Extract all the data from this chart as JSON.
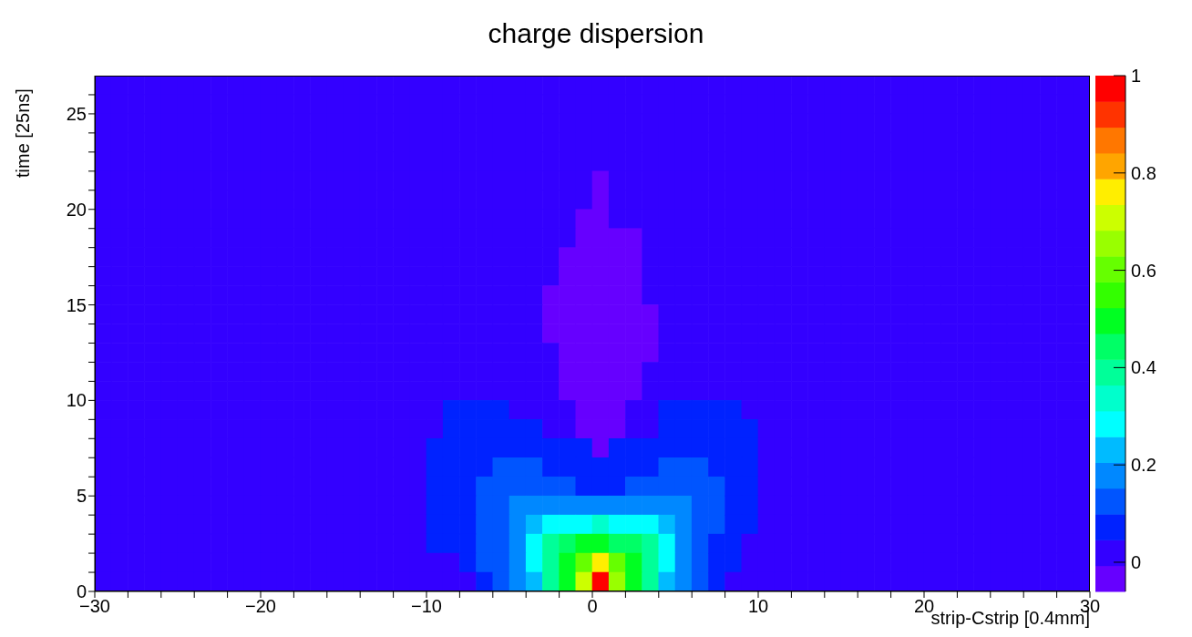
{
  "chart_data": {
    "type": "heatmap",
    "title": "charge dispersion",
    "xlabel": "strip-Cstrip [0.4mm]",
    "ylabel": "time [25ns]",
    "xlim": [
      -30,
      30
    ],
    "ylim": [
      0,
      27
    ],
    "xticks": [
      {
        "value": -30,
        "label": "−30"
      },
      {
        "value": -28,
        "label": null
      },
      {
        "value": -26,
        "label": null
      },
      {
        "value": -24,
        "label": null
      },
      {
        "value": -22,
        "label": null
      },
      {
        "value": -20,
        "label": "−20"
      },
      {
        "value": -18,
        "label": null
      },
      {
        "value": -16,
        "label": null
      },
      {
        "value": -14,
        "label": null
      },
      {
        "value": -12,
        "label": null
      },
      {
        "value": -10,
        "label": "−10"
      },
      {
        "value": -8,
        "label": null
      },
      {
        "value": -6,
        "label": null
      },
      {
        "value": -4,
        "label": null
      },
      {
        "value": -2,
        "label": null
      },
      0,
      {
        "value": 2,
        "label": null
      },
      {
        "value": 4,
        "label": null
      },
      {
        "value": 6,
        "label": null
      },
      {
        "value": 8,
        "label": null
      },
      10,
      {
        "value": 12,
        "label": null
      },
      {
        "value": 14,
        "label": null
      },
      {
        "value": 16,
        "label": null
      },
      {
        "value": 18,
        "label": null
      },
      20,
      {
        "value": 22,
        "label": null
      },
      {
        "value": 24,
        "label": null
      },
      {
        "value": 26,
        "label": null
      },
      {
        "value": 28,
        "label": null
      },
      30
    ],
    "yticks": [
      0,
      {
        "value": 1,
        "label": null
      },
      {
        "value": 2,
        "label": null
      },
      {
        "value": 3,
        "label": null
      },
      {
        "value": 4,
        "label": null
      },
      5,
      {
        "value": 6,
        "label": null
      },
      {
        "value": 7,
        "label": null
      },
      {
        "value": 8,
        "label": null
      },
      {
        "value": 9,
        "label": null
      },
      10,
      {
        "value": 11,
        "label": null
      },
      {
        "value": 12,
        "label": null
      },
      {
        "value": 13,
        "label": null
      },
      {
        "value": 14,
        "label": null
      },
      15,
      {
        "value": 16,
        "label": null
      },
      {
        "value": 17,
        "label": null
      },
      {
        "value": 18,
        "label": null
      },
      {
        "value": 19,
        "label": null
      },
      20,
      {
        "value": 21,
        "label": null
      },
      {
        "value": 22,
        "label": null
      },
      {
        "value": 23,
        "label": null
      },
      {
        "value": 24,
        "label": null
      },
      25,
      {
        "value": 26,
        "label": null
      }
    ],
    "clim": [
      -0.06,
      1
    ],
    "cticks": [
      0,
      0.2,
      0.4,
      0.6,
      0.8,
      1
    ],
    "cells": [
      [
        0,
        0,
        0,
        0,
        0,
        0,
        0,
        0,
        0,
        0,
        0,
        0,
        0,
        0,
        0,
        0,
        0,
        0,
        0,
        0,
        0,
        0,
        0,
        0,
        0,
        0,
        0,
        0,
        0,
        0,
        0,
        0,
        0,
        0,
        0,
        0,
        0,
        0,
        0,
        0,
        0,
        0,
        0,
        0,
        0,
        0,
        0,
        0,
        0,
        0,
        0,
        0,
        0,
        0,
        0,
        0,
        0,
        0,
        0,
        0
      ],
      [
        0,
        0,
        0,
        0,
        0,
        0,
        0,
        0,
        0,
        0,
        0,
        0,
        0,
        0,
        0,
        0,
        0,
        0,
        0,
        0,
        0,
        0,
        0,
        0,
        0,
        0,
        0,
        0,
        0,
        0,
        0,
        0,
        0,
        0,
        0,
        0,
        0,
        0,
        0,
        0,
        0,
        0,
        0,
        0,
        0,
        0,
        0,
        0,
        0,
        0,
        0,
        0,
        0,
        0,
        0,
        0,
        0,
        0,
        0,
        0
      ],
      [
        0,
        0,
        0,
        0,
        0,
        0,
        0,
        0,
        0,
        0,
        0,
        0,
        0,
        0,
        0,
        0,
        0,
        0,
        0,
        0,
        0,
        0,
        0,
        0,
        0,
        0,
        0,
        0,
        0,
        0,
        0,
        0,
        0,
        0,
        0,
        0,
        0,
        0,
        0,
        0,
        0,
        0,
        0,
        0,
        0,
        0,
        0,
        0,
        0,
        0,
        0,
        0,
        0,
        0,
        0,
        0,
        0,
        0,
        0,
        0
      ],
      [
        0,
        0,
        0,
        0,
        0,
        0,
        0,
        0,
        0,
        0,
        0,
        0,
        0,
        0,
        0,
        0,
        0,
        0,
        0,
        0,
        0,
        0,
        0,
        0,
        0,
        0,
        0,
        0,
        0,
        0,
        0,
        0,
        0,
        0,
        0,
        0,
        0,
        0,
        0,
        0,
        0,
        0,
        0,
        0,
        0,
        0,
        0,
        0,
        0,
        0,
        0,
        0,
        0,
        0,
        0,
        0,
        0,
        0,
        0,
        0
      ],
      [
        0,
        0,
        0,
        0,
        0,
        0,
        0,
        0,
        0,
        0,
        0,
        0,
        0,
        0,
        0,
        0,
        0,
        0,
        0,
        0,
        0,
        0,
        0,
        0,
        0,
        0,
        0,
        0,
        0,
        0,
        0,
        0,
        0,
        0,
        0,
        0,
        0,
        0,
        0,
        0,
        0,
        0,
        0,
        0,
        0,
        0,
        0,
        0,
        0,
        0,
        0,
        0,
        0,
        0,
        0,
        0,
        0,
        0,
        0,
        0
      ],
      [
        0,
        0,
        0,
        0,
        0,
        0,
        0,
        0,
        0,
        0,
        0,
        0,
        0,
        0,
        0,
        0,
        0,
        0,
        0,
        0,
        0,
        0,
        0,
        0,
        0,
        0,
        0,
        0,
        0,
        0,
        -0.03,
        0,
        0,
        0,
        0,
        0,
        0,
        0,
        0,
        0,
        0,
        0,
        0,
        0,
        0,
        0,
        0,
        0,
        0,
        0,
        0,
        0,
        0,
        0,
        0,
        0,
        0,
        0,
        0,
        0
      ],
      [
        0,
        0,
        0,
        0,
        0,
        0,
        0,
        0,
        0,
        0,
        0,
        0,
        0,
        0,
        0,
        0,
        0,
        0,
        0,
        0,
        0,
        0,
        0,
        0,
        0,
        0,
        0,
        0,
        0,
        0,
        -0.03,
        0,
        0,
        0,
        0,
        0,
        0,
        0,
        0,
        0,
        0,
        0,
        0,
        0,
        0,
        0,
        0,
        0,
        0,
        0,
        0,
        0,
        0,
        0,
        0,
        0,
        0,
        0,
        0,
        0
      ],
      [
        0,
        0,
        0,
        0,
        0,
        0,
        0,
        0,
        0,
        0,
        0,
        0,
        0,
        0,
        0,
        0,
        0,
        0,
        0,
        0,
        0,
        0,
        0,
        0,
        0,
        0,
        0,
        0,
        0,
        -0.03,
        -0.03,
        0,
        0,
        0,
        0,
        0,
        0,
        0,
        0,
        0,
        0,
        0,
        0,
        0,
        0,
        0,
        0,
        0,
        0,
        0,
        0,
        0,
        0,
        0,
        0,
        0,
        0,
        0,
        0,
        0
      ],
      [
        0,
        0,
        0,
        0,
        0,
        0,
        0,
        0,
        0,
        0,
        0,
        0,
        0,
        0,
        0,
        0,
        0,
        0,
        0,
        0,
        0,
        0,
        0,
        0,
        0,
        0,
        0,
        0,
        0,
        -0.03,
        -0.03,
        -0.03,
        -0.03,
        0,
        0,
        0,
        0,
        0,
        0,
        0,
        0,
        0,
        0,
        0,
        0,
        0,
        0,
        0,
        0,
        0,
        0,
        0,
        0,
        0,
        0,
        0,
        0,
        0,
        0,
        0
      ],
      [
        0,
        0,
        0,
        0,
        0,
        0,
        0,
        0,
        0,
        0,
        0,
        0,
        0,
        0,
        0,
        0,
        0,
        0,
        0,
        0,
        0,
        0,
        0,
        0,
        0,
        0,
        0,
        0,
        -0.03,
        -0.03,
        -0.03,
        -0.03,
        -0.03,
        0,
        0,
        0,
        0,
        0,
        0,
        0,
        0,
        0,
        0,
        0,
        0,
        0,
        0,
        0,
        0,
        0,
        0,
        0,
        0,
        0,
        0,
        0,
        0,
        0,
        0,
        0
      ],
      [
        0,
        0,
        0,
        0,
        0,
        0,
        0,
        0,
        0,
        0,
        0,
        0,
        0,
        0,
        0,
        0,
        0,
        0,
        0,
        0,
        0,
        0,
        0,
        0,
        0,
        0,
        0,
        0,
        -0.03,
        -0.03,
        -0.03,
        -0.03,
        -0.03,
        0,
        0,
        0,
        0,
        0,
        0,
        0,
        0,
        0,
        0,
        0,
        0,
        0,
        0,
        0,
        0,
        0,
        0,
        0,
        0,
        0,
        0,
        0,
        0,
        0,
        0,
        0
      ],
      [
        0,
        0,
        0,
        0,
        0,
        0,
        0,
        0,
        0,
        0,
        0,
        0,
        0,
        0,
        0,
        0,
        0,
        0,
        0,
        0,
        0,
        0,
        0,
        0,
        0,
        0,
        0,
        -0.03,
        -0.03,
        -0.03,
        -0.03,
        -0.03,
        -0.03,
        0,
        0,
        0,
        0,
        0,
        0,
        0,
        0,
        0,
        0,
        0,
        0,
        0,
        0,
        0,
        0,
        0,
        0,
        0,
        0,
        0,
        0,
        0,
        0,
        0,
        0,
        0
      ],
      [
        0,
        0,
        0,
        0,
        0,
        0,
        0,
        0,
        0,
        0,
        0,
        0,
        0,
        0,
        0,
        0,
        0,
        0,
        0,
        0,
        0,
        0,
        0,
        0,
        0,
        0,
        0,
        -0.03,
        -0.03,
        -0.03,
        -0.03,
        -0.03,
        -0.03,
        -0.03,
        0,
        0,
        0,
        0,
        0,
        0,
        0,
        0,
        0,
        0,
        0,
        0,
        0,
        0,
        0,
        0,
        0,
        0,
        0,
        0,
        0,
        0,
        0,
        0,
        0,
        0
      ],
      [
        0,
        0,
        0,
        0,
        0,
        0,
        0,
        0,
        0,
        0,
        0,
        0,
        0,
        0,
        0,
        0,
        0,
        0,
        0,
        0,
        0,
        0,
        0,
        0,
        0,
        0,
        0,
        -0.03,
        -0.03,
        -0.03,
        -0.03,
        -0.03,
        -0.03,
        -0.03,
        0,
        0,
        0,
        0,
        0,
        0,
        0,
        0,
        0,
        0,
        0,
        0,
        0,
        0,
        0,
        0,
        0,
        0,
        0,
        0,
        0,
        0,
        0,
        0,
        0,
        0
      ],
      [
        0,
        0,
        0,
        0,
        0,
        0,
        0,
        0,
        0,
        0,
        0,
        0,
        0,
        0,
        0,
        0,
        0,
        0,
        0,
        0,
        0,
        0,
        0,
        0,
        0,
        0,
        0,
        0,
        -0.03,
        -0.03,
        -0.03,
        -0.03,
        -0.03,
        -0.03,
        0,
        0,
        0,
        0,
        0,
        0,
        0,
        0,
        0,
        0,
        0,
        0,
        0,
        0,
        0,
        0,
        0,
        0,
        0,
        0,
        0,
        0,
        0,
        0,
        0,
        0
      ],
      [
        0,
        0,
        0,
        0,
        0,
        0,
        0,
        0,
        0,
        0,
        0,
        0,
        0,
        0,
        0,
        0,
        0,
        0,
        0,
        0,
        0,
        0,
        0,
        0,
        0,
        0,
        0,
        0,
        -0.03,
        -0.03,
        -0.03,
        -0.03,
        -0.03,
        0,
        0,
        0,
        0,
        0,
        0,
        0,
        0,
        0,
        0,
        0,
        0,
        0,
        0,
        0,
        0,
        0,
        0,
        0,
        0,
        0,
        0,
        0,
        0,
        0,
        0,
        0
      ],
      [
        0,
        0,
        0,
        0,
        0,
        0,
        0,
        0,
        0,
        0,
        0,
        0,
        0,
        0,
        0,
        0,
        0,
        0,
        0,
        0,
        0,
        0,
        0,
        0,
        0,
        0,
        0,
        0,
        -0.03,
        -0.03,
        -0.03,
        -0.03,
        -0.03,
        0,
        0,
        0,
        0,
        0,
        0,
        0,
        0,
        0,
        0,
        0,
        0,
        0,
        0,
        0,
        0,
        0,
        0,
        0,
        0,
        0,
        0,
        0,
        0,
        0,
        0,
        0
      ],
      [
        0,
        0,
        0,
        0,
        0,
        0,
        0,
        0,
        0,
        0,
        0,
        0,
        0,
        0,
        0,
        0,
        0,
        0,
        0,
        0,
        0,
        0.07,
        0.07,
        0.07,
        0.07,
        0,
        0,
        0,
        0,
        -0.03,
        -0.03,
        -0.03,
        0,
        0,
        0.07,
        0.07,
        0.07,
        0.07,
        0.07,
        0,
        0,
        0,
        0,
        0,
        0,
        0,
        0,
        0,
        0,
        0,
        0,
        0,
        0,
        0,
        0,
        0,
        0,
        0,
        0,
        0
      ],
      [
        0,
        0,
        0,
        0,
        0,
        0,
        0,
        0,
        0,
        0,
        0,
        0,
        0,
        0,
        0,
        0,
        0,
        0,
        0,
        0,
        0,
        0.07,
        0.07,
        0.07,
        0.07,
        0.07,
        0.07,
        0,
        0,
        -0.03,
        -0.03,
        -0.03,
        0,
        0,
        0.07,
        0.07,
        0.07,
        0.07,
        0.07,
        0.07,
        0,
        0,
        0,
        0,
        0,
        0,
        0,
        0,
        0,
        0,
        0,
        0,
        0,
        0,
        0,
        0,
        0,
        0,
        0,
        0
      ],
      [
        0,
        0,
        0,
        0,
        0,
        0,
        0,
        0,
        0,
        0,
        0,
        0,
        0,
        0,
        0,
        0,
        0,
        0,
        0,
        0,
        0.07,
        0.07,
        0.07,
        0.07,
        0.07,
        0.07,
        0.07,
        0.07,
        0.07,
        0.07,
        -0.03,
        0.07,
        0.07,
        0.07,
        0.07,
        0.07,
        0.07,
        0.07,
        0.07,
        0.07,
        0,
        0,
        0,
        0,
        0,
        0,
        0,
        0,
        0,
        0,
        0,
        0,
        0,
        0,
        0,
        0,
        0,
        0,
        0,
        0
      ],
      [
        0,
        0,
        0,
        0,
        0,
        0,
        0,
        0,
        0,
        0,
        0,
        0,
        0,
        0,
        0,
        0,
        0,
        0,
        0,
        0,
        0.07,
        0.07,
        0.07,
        0.07,
        0.12,
        0.12,
        0.12,
        0.07,
        0.07,
        0.07,
        0.07,
        0.07,
        0.07,
        0.07,
        0.12,
        0.12,
        0.12,
        0.07,
        0.07,
        0.07,
        0,
        0,
        0,
        0,
        0,
        0,
        0,
        0,
        0,
        0,
        0,
        0,
        0,
        0,
        0,
        0,
        0,
        0,
        0,
        0
      ],
      [
        0,
        0,
        0,
        0,
        0,
        0,
        0,
        0,
        0,
        0,
        0,
        0,
        0,
        0,
        0,
        0,
        0,
        0,
        0,
        0,
        0.07,
        0.07,
        0.07,
        0.12,
        0.12,
        0.12,
        0.12,
        0.12,
        0.12,
        0.07,
        0.07,
        0.07,
        0.12,
        0.12,
        0.12,
        0.12,
        0.12,
        0.12,
        0.07,
        0.07,
        0,
        0,
        0,
        0,
        0,
        0,
        0,
        0,
        0,
        0,
        0,
        0,
        0,
        0,
        0,
        0,
        0,
        0,
        0,
        0
      ],
      [
        0,
        0,
        0,
        0,
        0,
        0,
        0,
        0,
        0,
        0,
        0,
        0,
        0,
        0,
        0,
        0,
        0,
        0,
        0,
        0,
        0.07,
        0.07,
        0.07,
        0.12,
        0.12,
        0.18,
        0.18,
        0.18,
        0.18,
        0.18,
        0.18,
        0.18,
        0.18,
        0.18,
        0.18,
        0.18,
        0.12,
        0.12,
        0.07,
        0.07,
        0,
        0,
        0,
        0,
        0,
        0,
        0,
        0,
        0,
        0,
        0,
        0,
        0,
        0,
        0,
        0,
        0,
        0,
        0,
        0
      ],
      [
        0,
        0,
        0,
        0,
        0,
        0,
        0,
        0,
        0,
        0,
        0,
        0,
        0,
        0,
        0,
        0,
        0,
        0,
        0,
        0,
        0.07,
        0.07,
        0.07,
        0.12,
        0.12,
        0.18,
        0.23,
        0.28,
        0.28,
        0.28,
        0.34,
        0.28,
        0.28,
        0.28,
        0.23,
        0.18,
        0.12,
        0.12,
        0.07,
        0.07,
        0,
        0,
        0,
        0,
        0,
        0,
        0,
        0,
        0,
        0,
        0,
        0,
        0,
        0,
        0,
        0,
        0,
        0,
        0,
        0
      ],
      [
        0,
        0,
        0,
        0,
        0,
        0,
        0,
        0,
        0,
        0,
        0,
        0,
        0,
        0,
        0,
        0,
        0,
        0,
        0,
        0,
        0.07,
        0.07,
        0.07,
        0.12,
        0.12,
        0.18,
        0.28,
        0.39,
        0.44,
        0.5,
        0.5,
        0.44,
        0.44,
        0.39,
        0.28,
        0.18,
        0.12,
        0.07,
        0.07,
        0,
        0,
        0,
        0,
        0,
        0,
        0,
        0,
        0,
        0,
        0,
        0,
        0,
        0,
        0,
        0,
        0,
        0,
        0,
        0,
        0
      ],
      [
        0,
        0,
        0,
        0,
        0,
        0,
        0,
        0,
        0,
        0,
        0,
        0,
        0,
        0,
        0,
        0,
        0,
        0,
        0,
        0,
        0,
        0,
        0.07,
        0.12,
        0.12,
        0.18,
        0.28,
        0.39,
        0.5,
        0.6,
        0.76,
        0.6,
        0.5,
        0.39,
        0.28,
        0.18,
        0.12,
        0.07,
        0.07,
        0,
        0,
        0,
        0,
        0,
        0,
        0,
        0,
        0,
        0,
        0,
        0,
        0,
        0,
        0,
        0,
        0,
        0,
        0,
        0,
        0
      ],
      [
        0,
        0,
        0,
        0,
        0,
        0,
        0,
        0,
        0,
        0,
        0,
        0,
        0,
        0,
        0,
        0,
        0,
        0,
        0,
        0,
        0,
        0,
        0,
        0.07,
        0.12,
        0.18,
        0.23,
        0.39,
        0.5,
        0.71,
        1,
        0.66,
        0.5,
        0.39,
        0.23,
        0.18,
        0.12,
        0.07,
        0,
        0,
        0,
        0,
        0,
        0,
        0,
        0,
        0,
        0,
        0,
        0,
        0,
        0,
        0,
        0,
        0,
        0,
        0,
        0,
        0,
        0
      ]
    ]
  }
}
